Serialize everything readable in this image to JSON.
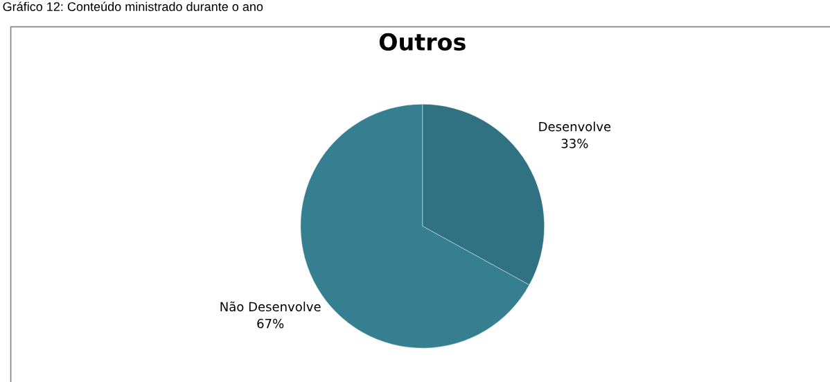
{
  "chart_data": {
    "type": "pie",
    "title": "Outros",
    "annotations": [
      "Gráfico 12: Conteúdo ministrado durante o ano"
    ],
    "categories": [
      "Desenvolve",
      "Não Desenvolve"
    ],
    "values": [
      33,
      67
    ],
    "colors": [
      "#307282",
      "#367f90"
    ],
    "value_labels": [
      "33%",
      "67%"
    ]
  }
}
